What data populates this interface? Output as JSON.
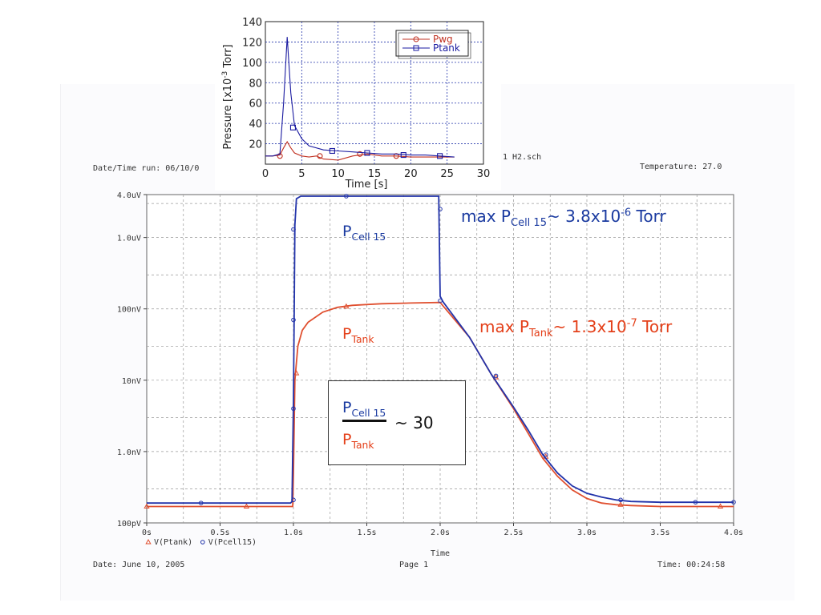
{
  "header": {
    "date_time_run": "Date/Time run: 06/10/0",
    "schematic": "1 H2.sch",
    "temperature": "Temperature: 27.0"
  },
  "footer": {
    "date": "Date: June 10, 2005",
    "page": "Page 1",
    "time": "Time: 00:24:58"
  },
  "annotations": {
    "pcell_label": {
      "base": "P",
      "sub": "Cell 15"
    },
    "ptank_label": {
      "base": "P",
      "sub": "Tank"
    },
    "max_cell": {
      "pre": "max P",
      "sub": "Cell 15",
      "mid": "~ 3.8x10",
      "sup": "-6",
      "post": " Torr"
    },
    "max_tank": {
      "pre": "max P",
      "sub": "Tank",
      "mid": "~ 1.3x10",
      "sup": "-7",
      "post": " Torr"
    },
    "ratio": {
      "num_base": "P",
      "num_sub": "Cell 15",
      "den_base": "P",
      "den_sub": "Tank",
      "value": "~ 30"
    }
  },
  "colors": {
    "blue": "#2233aa",
    "red": "#e05030",
    "inset_blue": "#1a1aa0",
    "inset_red": "#c03020"
  },
  "chart_data": [
    {
      "type": "line",
      "xlabel": "Time",
      "ylabel": "",
      "x_ticks": [
        "0s",
        "0.5s",
        "1.0s",
        "1.5s",
        "2.0s",
        "2.5s",
        "3.0s",
        "3.5s",
        "4.0s"
      ],
      "x_tick_values": [
        0,
        0.5,
        1.0,
        1.5,
        2.0,
        2.5,
        3.0,
        3.5,
        4.0
      ],
      "y_ticks": [
        "4.0uV",
        "1.0uV",
        "100nV",
        "10nV",
        "1.0nV",
        "100pV"
      ],
      "y_tick_values": [
        4e-06,
        1e-06,
        1e-07,
        1e-08,
        1e-09,
        1e-10
      ],
      "xlim": [
        0,
        4.0
      ],
      "ylim": [
        1e-10,
        4e-06
      ],
      "y_scale": "log",
      "grid": true,
      "legend_position": "bottom-left",
      "series": [
        {
          "name": "V(Ptank)",
          "marker": "triangle",
          "x": [
            0,
            0.5,
            0.98,
            0.995,
            1.0,
            1.01,
            1.03,
            1.06,
            1.1,
            1.2,
            1.3,
            1.4,
            1.6,
            1.8,
            2.0,
            2.2,
            2.35,
            2.5,
            2.6,
            2.7,
            2.8,
            2.9,
            3.0,
            3.1,
            3.2,
            3.3,
            3.5,
            3.8,
            4.0
          ],
          "y": [
            1.7e-10,
            1.7e-10,
            1.7e-10,
            1.7e-10,
            5e-10,
            1e-08,
            3e-08,
            5e-08,
            6.5e-08,
            9e-08,
            1.05e-07,
            1.12e-07,
            1.18e-07,
            1.21e-07,
            1.23e-07,
            4e-08,
            1.2e-08,
            4e-09,
            1.8e-09,
            8e-10,
            4.5e-10,
            2.9e-10,
            2.2e-10,
            1.9e-10,
            1.8e-10,
            1.75e-10,
            1.7e-10,
            1.7e-10,
            1.7e-10
          ],
          "markers_x": [
            0,
            0.68,
            1.02,
            1.36,
            2.38,
            2.72,
            3.23,
            3.91
          ],
          "markers_y": [
            1.7e-10,
            1.7e-10,
            1.25e-08,
            1.08e-07,
            1.1e-08,
            8.5e-10,
            1.8e-10,
            1.7e-10
          ]
        },
        {
          "name": "V(Pcell15)",
          "marker": "circle",
          "x": [
            0,
            0.5,
            0.98,
            0.99,
            1.0,
            1.005,
            1.01,
            1.02,
            1.05,
            1.2,
            1.5,
            1.8,
            1.99,
            2.0,
            2.02,
            2.2,
            2.35,
            2.5,
            2.6,
            2.7,
            2.8,
            2.9,
            3.0,
            3.1,
            3.2,
            3.3,
            3.5,
            3.7,
            3.9,
            4.0
          ],
          "y": [
            1.9e-10,
            1.9e-10,
            1.9e-10,
            2e-10,
            5e-09,
            8e-08,
            1.5e-06,
            3.5e-06,
            3.8e-06,
            3.8e-06,
            3.8e-06,
            3.8e-06,
            3.8e-06,
            1.5e-07,
            1.25e-07,
            4e-08,
            1.2e-08,
            4.2e-09,
            2e-09,
            9e-10,
            5e-10,
            3.3e-10,
            2.6e-10,
            2.3e-10,
            2.1e-10,
            2e-10,
            1.95e-10,
            1.95e-10,
            1.95e-10,
            1.95e-10
          ],
          "markers_x": [
            0.37,
            1.0,
            1.0,
            1.0,
            1.0,
            1.36,
            2.0,
            2.0,
            2.38,
            2.72,
            3.23,
            3.74,
            4.0
          ],
          "markers_y": [
            1.9e-10,
            2.1e-10,
            4e-09,
            7e-08,
            1.3e-06,
            3.8e-06,
            2.5e-06,
            1.3e-07,
            1.15e-08,
            9e-10,
            2.1e-10,
            1.95e-10,
            1.95e-10
          ]
        }
      ]
    },
    {
      "type": "line",
      "xlabel": "Time [s]",
      "ylabel_base": "Pressure [x10",
      "ylabel_sup": "-3",
      "ylabel_post": " Torr]",
      "x_ticks": [
        "0",
        "5",
        "10",
        "15",
        "20",
        "25",
        "30"
      ],
      "x_tick_values": [
        0,
        5,
        10,
        15,
        20,
        25,
        30
      ],
      "y_ticks": [
        "20",
        "40",
        "60",
        "80",
        "100",
        "120",
        "140"
      ],
      "y_tick_values": [
        20,
        40,
        60,
        80,
        100,
        120,
        140
      ],
      "xlim": [
        0,
        30
      ],
      "ylim": [
        0,
        140
      ],
      "grid": true,
      "legend_position": "top-right",
      "series": [
        {
          "name": "Pwg",
          "marker": "circle",
          "x": [
            0,
            1,
            2,
            2.5,
            3,
            3.5,
            4,
            5,
            6,
            7,
            8,
            10,
            12,
            14,
            16,
            18,
            20,
            22,
            24,
            26
          ],
          "y": [
            8,
            8,
            9,
            16,
            22,
            16,
            11,
            8,
            7,
            8,
            5,
            4,
            8,
            10,
            8,
            8,
            7,
            7,
            7,
            7
          ],
          "markers_x": [
            2,
            7.5,
            13,
            18
          ],
          "markers_y": [
            8,
            8,
            10,
            8
          ]
        },
        {
          "name": "Ptank",
          "marker": "square",
          "x": [
            0,
            1,
            2,
            2.5,
            3,
            3.5,
            4,
            5,
            6,
            8,
            10,
            12,
            14,
            16,
            18,
            20,
            22,
            24,
            26
          ],
          "y": [
            8,
            8,
            10,
            60,
            125,
            70,
            38,
            25,
            18,
            14,
            13,
            12,
            11,
            10,
            10,
            9,
            9,
            8,
            7
          ],
          "markers_x": [
            3.8,
            9.2,
            14,
            19,
            24
          ],
          "markers_y": [
            36,
            13,
            11,
            9,
            8
          ]
        }
      ]
    }
  ]
}
